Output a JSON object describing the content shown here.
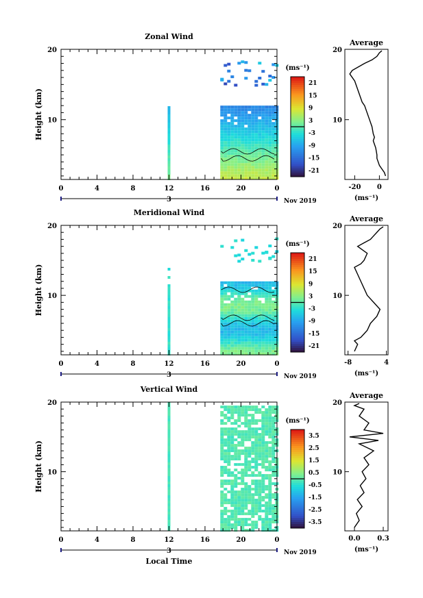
{
  "xlabel": "Local Time",
  "date_label": "Nov 2019",
  "colorbar_unit": "(ms⁻¹)",
  "avg_unit": "(ms⁻¹)",
  "avg_title": "Average",
  "ylabel": "Height (km)",
  "chart_data": [
    {
      "type": "heatmap",
      "title": "Zonal Wind",
      "xlabel": "Local Time",
      "ylabel": "Height (km)",
      "x_ticks": [
        "0",
        "4",
        "8",
        "12",
        "16",
        "20",
        "0"
      ],
      "x_range_hours": [
        0,
        24
      ],
      "y_range_km": [
        1.5,
        20
      ],
      "y_ticks": [
        "20",
        "10"
      ],
      "day_marker": "3",
      "date_label": "Nov 2019",
      "colorbar": {
        "unit": "(ms⁻¹)",
        "ticks": [
          "21",
          "15",
          "9",
          "3",
          "-3",
          "-9",
          "-15",
          "-21"
        ],
        "range": [
          -24,
          24
        ]
      },
      "average_profile": {
        "title": "Average",
        "x_ticks": [
          "-20",
          "0"
        ],
        "x_range": [
          -28,
          7
        ],
        "xlabel": "(ms⁻¹)",
        "points": [
          [
            5,
            2
          ],
          [
            4,
            2.5
          ],
          [
            2,
            3
          ],
          [
            0,
            3.5
          ],
          [
            -1,
            4
          ],
          [
            -2,
            4.5
          ],
          [
            -2,
            5
          ],
          [
            -3,
            6
          ],
          [
            -4,
            6.5
          ],
          [
            -5,
            7
          ],
          [
            -4,
            7.5
          ],
          [
            -5,
            8
          ],
          [
            -6,
            9
          ],
          [
            -8,
            10
          ],
          [
            -10,
            11
          ],
          [
            -12,
            12
          ],
          [
            -14,
            12.5
          ],
          [
            -15,
            13
          ],
          [
            -16,
            13.5
          ],
          [
            -20,
            15.5
          ],
          [
            -24,
            16.5
          ],
          [
            -22,
            17
          ],
          [
            -12,
            18
          ],
          [
            -6,
            18.5
          ],
          [
            -2,
            19
          ],
          [
            0,
            19.5
          ],
          [
            2,
            19.8
          ]
        ]
      }
    },
    {
      "type": "heatmap",
      "title": "Meridional Wind",
      "xlabel": "Local Time",
      "ylabel": "Height (km)",
      "x_ticks": [
        "0",
        "4",
        "8",
        "12",
        "16",
        "20",
        "0"
      ],
      "x_range_hours": [
        0,
        24
      ],
      "y_range_km": [
        1.5,
        20
      ],
      "y_ticks": [
        "20",
        "10"
      ],
      "day_marker": "3",
      "date_label": "Nov 2019",
      "colorbar": {
        "unit": "(ms⁻¹)",
        "ticks": [
          "21",
          "15",
          "9",
          "3",
          "-3",
          "-9",
          "-15",
          "-21"
        ],
        "range": [
          -24,
          24
        ]
      },
      "average_profile": {
        "title": "Average",
        "x_ticks": [
          "-8",
          "4"
        ],
        "x_range": [
          -9,
          4.5
        ],
        "xlabel": "(ms⁻¹)",
        "points": [
          [
            -6,
            2
          ],
          [
            -5,
            3
          ],
          [
            -6,
            3.5
          ],
          [
            -4,
            4
          ],
          [
            -3,
            4.5
          ],
          [
            -2,
            5
          ],
          [
            -1,
            6
          ],
          [
            1,
            7
          ],
          [
            2,
            8
          ],
          [
            0,
            9
          ],
          [
            -2,
            10
          ],
          [
            -3,
            11
          ],
          [
            -4,
            12
          ],
          [
            -5,
            13
          ],
          [
            -6,
            14
          ],
          [
            -4,
            14.5
          ],
          [
            -3,
            15
          ],
          [
            -2,
            16
          ],
          [
            -5,
            17
          ],
          [
            -3,
            17.5
          ],
          [
            -1,
            18
          ],
          [
            0,
            18.5
          ],
          [
            1,
            19
          ],
          [
            2,
            19.5
          ],
          [
            3,
            19.8
          ]
        ]
      }
    },
    {
      "type": "heatmap",
      "title": "Vertical Wind",
      "xlabel": "Local Time",
      "ylabel": "Height (km)",
      "x_ticks": [
        "0",
        "4",
        "8",
        "12",
        "16",
        "20",
        "0"
      ],
      "x_range_hours": [
        0,
        24
      ],
      "y_range_km": [
        1.5,
        20
      ],
      "y_ticks": [
        "20",
        "10"
      ],
      "day_marker": "3",
      "date_label": "Nov 2019",
      "colorbar": {
        "unit": "(ms⁻¹)",
        "ticks": [
          "3.5",
          "2.5",
          "1.5",
          "0.5",
          "-0.5",
          "-1.5",
          "-2.5",
          "-3.5"
        ],
        "range": [
          -4,
          4
        ]
      },
      "average_profile": {
        "title": "Average",
        "x_ticks": [
          "0.0",
          "0.3"
        ],
        "x_range": [
          -0.1,
          0.35
        ],
        "xlabel": "(ms⁻¹)",
        "points": [
          [
            0.0,
            2
          ],
          [
            0.05,
            3
          ],
          [
            0.02,
            4
          ],
          [
            0.08,
            5
          ],
          [
            0.03,
            6
          ],
          [
            0.1,
            7
          ],
          [
            0.06,
            8
          ],
          [
            0.12,
            9
          ],
          [
            0.08,
            10
          ],
          [
            0.15,
            11
          ],
          [
            0.1,
            12
          ],
          [
            0.2,
            13
          ],
          [
            0.05,
            14
          ],
          [
            0.25,
            14.5
          ],
          [
            -0.05,
            15
          ],
          [
            0.3,
            15.5
          ],
          [
            0.1,
            16
          ],
          [
            0.15,
            17
          ],
          [
            0.05,
            18
          ],
          [
            0.1,
            19
          ],
          [
            0.0,
            19.5
          ],
          [
            0.05,
            19.8
          ]
        ]
      }
    }
  ]
}
